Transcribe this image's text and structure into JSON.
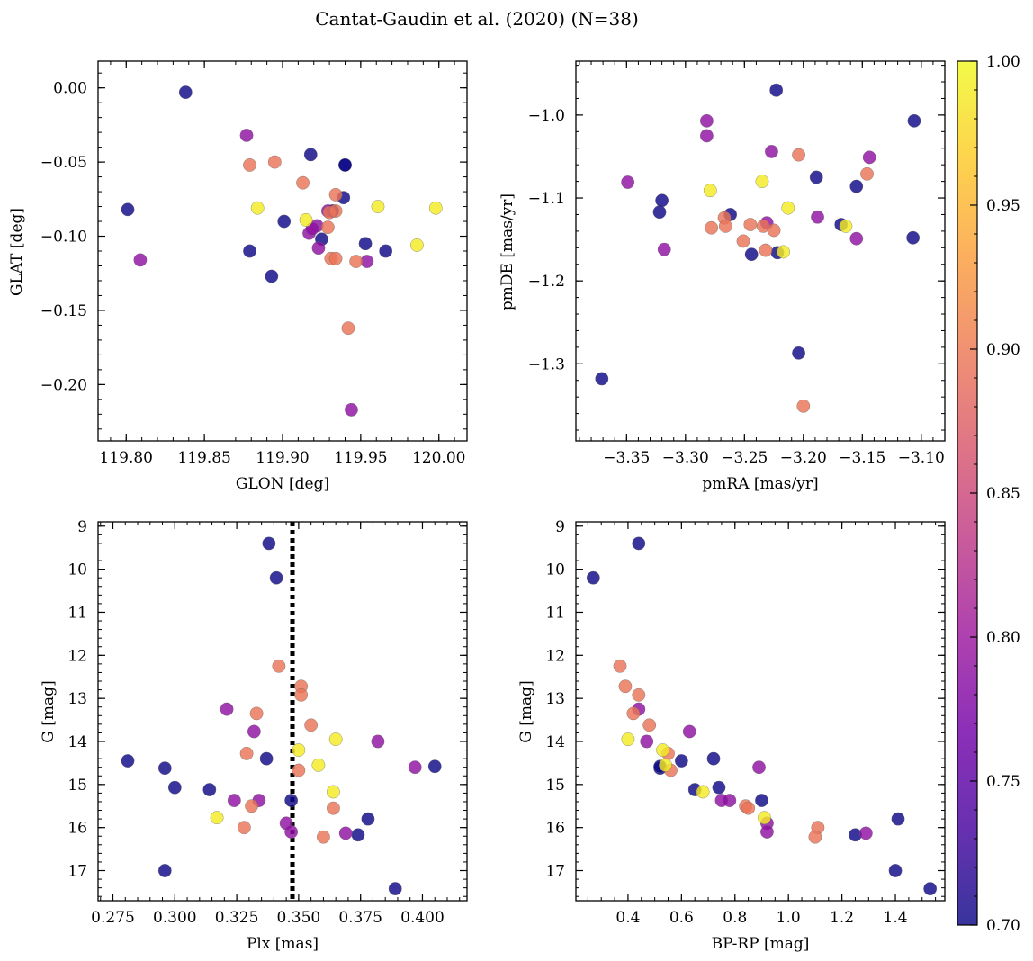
{
  "colors": {
    "colormap": [
      "#0d0887",
      "#46039f",
      "#7201a8",
      "#9c179e",
      "#bd3786",
      "#d8576b",
      "#ed7953",
      "#fb9f3a",
      "#fdca26",
      "#f0f921"
    ],
    "cbar_min": 0.7,
    "cbar_max": 1.0,
    "vline": "#000000"
  },
  "chart_data": {
    "title": "Cantat-Gaudin et al. (2020) (N=38)",
    "colorbar": {
      "min": 0.7,
      "max": 1.0,
      "ticks": [
        0.7,
        0.75,
        0.8,
        0.85,
        0.9,
        0.95,
        1.0
      ],
      "tick_labels": [
        "0.70",
        "0.75",
        "0.80",
        "0.85",
        "0.90",
        "0.95",
        "1.00"
      ]
    },
    "stars": [
      {
        "id": 1,
        "glon": 119.838,
        "glat": -0.003,
        "pmra": -3.223,
        "pmde": -0.97,
        "plx": 0.338,
        "g": 9.4,
        "bprp": 0.44,
        "prob": 0.7
      },
      {
        "id": 2,
        "glon": 119.801,
        "glat": -0.082,
        "pmra": -3.371,
        "pmde": -1.318,
        "plx": 0.341,
        "g": 10.2,
        "bprp": 0.27,
        "prob": 0.7
      },
      {
        "id": 3,
        "glon": 119.918,
        "glat": -0.045,
        "pmra": -3.322,
        "pmde": -1.117,
        "plx": 0.281,
        "g": 14.45,
        "bprp": 0.6,
        "prob": 0.7
      },
      {
        "id": 4,
        "glon": 119.94,
        "glat": -0.052,
        "pmra": -3.106,
        "pmde": -1.007,
        "plx": 0.296,
        "g": 14.62,
        "bprp": 0.52,
        "prob": 0.7
      },
      {
        "id": 5,
        "glon": 119.939,
        "glat": -0.074,
        "pmra": -3.262,
        "pmde": -1.12,
        "plx": 0.3,
        "g": 15.07,
        "bprp": 0.74,
        "prob": 0.7
      },
      {
        "id": 6,
        "glon": 119.901,
        "glat": -0.09,
        "pmra": -3.189,
        "pmde": -1.075,
        "plx": 0.314,
        "g": 15.12,
        "bprp": 0.65,
        "prob": 0.7
      },
      {
        "id": 7,
        "glon": 119.879,
        "glat": -0.11,
        "pmra": -3.32,
        "pmde": -1.103,
        "plx": 0.337,
        "g": 14.4,
        "bprp": 0.72,
        "prob": 0.7
      },
      {
        "id": 8,
        "glon": 119.893,
        "glat": -0.127,
        "pmra": -3.244,
        "pmde": -1.168,
        "plx": 0.347,
        "g": 15.37,
        "bprp": 0.9,
        "prob": 0.7
      },
      {
        "id": 9,
        "glon": 119.925,
        "glat": -0.102,
        "pmra": -3.155,
        "pmde": -1.086,
        "plx": 0.374,
        "g": 16.17,
        "bprp": 1.25,
        "prob": 0.7
      },
      {
        "id": 10,
        "glon": 119.953,
        "glat": -0.105,
        "pmra": -3.107,
        "pmde": -1.148,
        "plx": 0.378,
        "g": 15.8,
        "bprp": 1.41,
        "prob": 0.7
      },
      {
        "id": 11,
        "glon": 119.966,
        "glat": -0.11,
        "pmra": -3.204,
        "pmde": -1.287,
        "plx": 0.389,
        "g": 17.42,
        "bprp": 1.53,
        "prob": 0.7
      },
      {
        "id": 12,
        "glon": 119.94,
        "glat": -0.052,
        "pmra": -3.168,
        "pmde": -1.132,
        "plx": 0.405,
        "g": 14.58,
        "bprp": 0.52,
        "prob": 0.7
      },
      {
        "id": 13,
        "glon": 119.932,
        "glat": -0.083,
        "pmra": -3.222,
        "pmde": -1.166,
        "plx": 0.296,
        "g": 17.0,
        "bprp": 1.4,
        "prob": 0.7
      },
      {
        "id": 14,
        "glon": 119.877,
        "glat": -0.032,
        "pmra": -3.282,
        "pmde": -1.007,
        "plx": 0.321,
        "g": 13.25,
        "bprp": 0.44,
        "prob": 0.79
      },
      {
        "id": 15,
        "glon": 119.809,
        "glat": -0.116,
        "pmra": -3.282,
        "pmde": -1.025,
        "plx": 0.397,
        "g": 14.6,
        "bprp": 0.89,
        "prob": 0.79
      },
      {
        "id": 16,
        "glon": 119.917,
        "glat": -0.098,
        "pmra": -3.349,
        "pmde": -1.081,
        "plx": 0.369,
        "g": 16.13,
        "bprp": 1.29,
        "prob": 0.79
      },
      {
        "id": 17,
        "glon": 119.944,
        "glat": -0.217,
        "pmra": -3.318,
        "pmde": -1.162,
        "plx": 0.382,
        "g": 14.0,
        "bprp": 0.47,
        "prob": 0.79
      },
      {
        "id": 18,
        "glon": 119.922,
        "glat": -0.093,
        "pmra": -3.227,
        "pmde": -1.044,
        "plx": 0.332,
        "g": 13.77,
        "bprp": 0.63,
        "prob": 0.79
      },
      {
        "id": 19,
        "glon": 119.954,
        "glat": -0.117,
        "pmra": -3.144,
        "pmde": -1.051,
        "plx": 0.334,
        "g": 15.37,
        "bprp": 0.78,
        "prob": 0.79
      },
      {
        "id": 20,
        "glon": 119.923,
        "glat": -0.108,
        "pmra": -3.188,
        "pmde": -1.123,
        "plx": 0.324,
        "g": 15.37,
        "bprp": 0.75,
        "prob": 0.79
      },
      {
        "id": 21,
        "glon": 119.919,
        "glat": -0.095,
        "pmra": -3.155,
        "pmde": -1.149,
        "plx": 0.345,
        "g": 15.9,
        "bprp": 0.92,
        "prob": 0.79
      },
      {
        "id": 22,
        "glon": 119.929,
        "glat": -0.083,
        "pmra": -3.231,
        "pmde": -1.13,
        "plx": 0.347,
        "g": 16.1,
        "bprp": 0.92,
        "prob": 0.79
      },
      {
        "id": 23,
        "glon": 119.879,
        "glat": -0.052,
        "pmra": -3.278,
        "pmde": -1.136,
        "plx": 0.342,
        "g": 12.25,
        "bprp": 0.37,
        "prob": 0.895
      },
      {
        "id": 24,
        "glon": 119.895,
        "glat": -0.05,
        "pmra": -3.267,
        "pmde": -1.124,
        "plx": 0.351,
        "g": 12.72,
        "bprp": 0.39,
        "prob": 0.895
      },
      {
        "id": 25,
        "glon": 119.913,
        "glat": -0.064,
        "pmra": -3.204,
        "pmde": -1.048,
        "plx": 0.351,
        "g": 12.92,
        "bprp": 0.44,
        "prob": 0.895
      },
      {
        "id": 26,
        "glon": 119.934,
        "glat": -0.072,
        "pmra": -3.146,
        "pmde": -1.071,
        "plx": 0.355,
        "g": 13.62,
        "bprp": 0.48,
        "prob": 0.895
      },
      {
        "id": 27,
        "glon": 119.93,
        "glat": -0.084,
        "pmra": -3.251,
        "pmde": -1.152,
        "plx": 0.333,
        "g": 13.35,
        "bprp": 0.42,
        "prob": 0.895
      },
      {
        "id": 28,
        "glon": 119.934,
        "glat": -0.083,
        "pmra": -3.266,
        "pmde": -1.134,
        "plx": 0.329,
        "g": 14.28,
        "bprp": 0.55,
        "prob": 0.895
      },
      {
        "id": 29,
        "glon": 119.929,
        "glat": -0.094,
        "pmra": -3.245,
        "pmde": -1.132,
        "plx": 0.35,
        "g": 14.67,
        "bprp": 0.56,
        "prob": 0.895
      },
      {
        "id": 30,
        "glon": 119.931,
        "glat": -0.115,
        "pmra": -3.234,
        "pmde": -1.134,
        "plx": 0.331,
        "g": 15.5,
        "bprp": 0.84,
        "prob": 0.895
      },
      {
        "id": 31,
        "glon": 119.934,
        "glat": -0.115,
        "pmra": -3.232,
        "pmde": -1.163,
        "plx": 0.364,
        "g": 15.55,
        "bprp": 0.85,
        "prob": 0.895
      },
      {
        "id": 32,
        "glon": 119.947,
        "glat": -0.117,
        "pmra": -3.225,
        "pmde": -1.139,
        "plx": 0.328,
        "g": 16.0,
        "bprp": 1.11,
        "prob": 0.895
      },
      {
        "id": 33,
        "glon": 119.942,
        "glat": -0.162,
        "pmra": -3.2,
        "pmde": -1.351,
        "plx": 0.36,
        "g": 16.22,
        "bprp": 1.1,
        "prob": 0.895
      },
      {
        "id": 34,
        "glon": 119.884,
        "glat": -0.081,
        "pmra": -3.279,
        "pmde": -1.091,
        "plx": 0.317,
        "g": 15.77,
        "bprp": 0.91,
        "prob": 0.99
      },
      {
        "id": 35,
        "glon": 119.915,
        "glat": -0.089,
        "pmra": -3.235,
        "pmde": -1.08,
        "plx": 0.365,
        "g": 13.95,
        "bprp": 0.4,
        "prob": 0.99
      },
      {
        "id": 36,
        "glon": 119.961,
        "glat": -0.08,
        "pmra": -3.213,
        "pmde": -1.112,
        "plx": 0.35,
        "g": 14.2,
        "bprp": 0.53,
        "prob": 0.99
      },
      {
        "id": 37,
        "glon": 119.998,
        "glat": -0.081,
        "pmra": -3.217,
        "pmde": -1.165,
        "plx": 0.358,
        "g": 14.55,
        "bprp": 0.54,
        "prob": 0.99
      },
      {
        "id": 38,
        "glon": 119.986,
        "glat": -0.106,
        "pmra": -3.164,
        "pmde": -1.134,
        "plx": 0.364,
        "g": 15.17,
        "bprp": 0.68,
        "prob": 0.99
      }
    ],
    "panels": [
      {
        "id": "spatial",
        "type": "scatter",
        "x_key": "glon",
        "y_key": "glat",
        "xlabel": "GLON [deg]",
        "ylabel": "GLAT [deg]",
        "xlim": [
          119.782,
          120.018
        ],
        "ylim": [
          -0.238,
          0.018
        ],
        "x_ticks": [
          119.8,
          119.85,
          119.9,
          119.95,
          120.0
        ],
        "x_tick_labels": [
          "119.80",
          "119.85",
          "119.90",
          "119.95",
          "120.00"
        ],
        "x_minor_step": 0.01,
        "y_ticks": [
          0.0,
          -0.05,
          -0.1,
          -0.15,
          -0.2
        ],
        "y_tick_labels": [
          "0.00",
          "−0.05",
          "−0.10",
          "−0.15",
          "−0.20"
        ],
        "y_minor_step": 0.01,
        "invert_y": false
      },
      {
        "id": "proper-motion",
        "type": "scatter",
        "x_key": "pmra",
        "y_key": "pmde",
        "xlabel": "pmRA [mas/yr]",
        "ylabel": "pmDE [mas/yr]",
        "xlim": [
          -3.393,
          -3.08
        ],
        "ylim": [
          -1.393,
          -0.935
        ],
        "x_ticks": [
          -3.35,
          -3.3,
          -3.25,
          -3.2,
          -3.15,
          -3.1
        ],
        "x_tick_labels": [
          "−3.35",
          "−3.30",
          "−3.25",
          "−3.20",
          "−3.15",
          "−3.10"
        ],
        "x_minor_step": 0.01,
        "y_ticks": [
          -1.0,
          -1.1,
          -1.2,
          -1.3
        ],
        "y_tick_labels": [
          "−1.0",
          "−1.1",
          "−1.2",
          "−1.3"
        ],
        "y_minor_step": 0.02,
        "invert_y": false
      },
      {
        "id": "plx-g",
        "type": "scatter",
        "x_key": "plx",
        "y_key": "g",
        "xlabel": "Plx [mas]",
        "ylabel": "G [mag]",
        "xlim": [
          0.269,
          0.418
        ],
        "ylim": [
          8.9,
          17.7
        ],
        "x_ticks": [
          0.275,
          0.3,
          0.325,
          0.35,
          0.375,
          0.4
        ],
        "x_tick_labels": [
          "0.275",
          "0.300",
          "0.325",
          "0.350",
          "0.375",
          "0.400"
        ],
        "x_minor_step": 0.005,
        "y_ticks": [
          9,
          10,
          11,
          12,
          13,
          14,
          15,
          16,
          17
        ],
        "y_tick_labels": [
          "9",
          "10",
          "11",
          "12",
          "13",
          "14",
          "15",
          "16",
          "17"
        ],
        "y_minor_step": 0.2,
        "invert_y": true,
        "vline": 0.3475
      },
      {
        "id": "cmd",
        "type": "scatter",
        "x_key": "bprp",
        "y_key": "g",
        "xlabel": "BP-RP [mag]",
        "ylabel": "G [mag]",
        "xlim": [
          0.205,
          1.585
        ],
        "ylim": [
          8.9,
          17.7
        ],
        "x_ticks": [
          0.4,
          0.6,
          0.8,
          1.0,
          1.2,
          1.4
        ],
        "x_tick_labels": [
          "0.4",
          "0.6",
          "0.8",
          "1.0",
          "1.2",
          "1.4"
        ],
        "x_minor_step": 0.05,
        "y_ticks": [
          9,
          10,
          11,
          12,
          13,
          14,
          15,
          16,
          17
        ],
        "y_tick_labels": [
          "9",
          "10",
          "11",
          "12",
          "13",
          "14",
          "15",
          "16",
          "17"
        ],
        "y_minor_step": 0.2,
        "invert_y": true
      }
    ]
  }
}
